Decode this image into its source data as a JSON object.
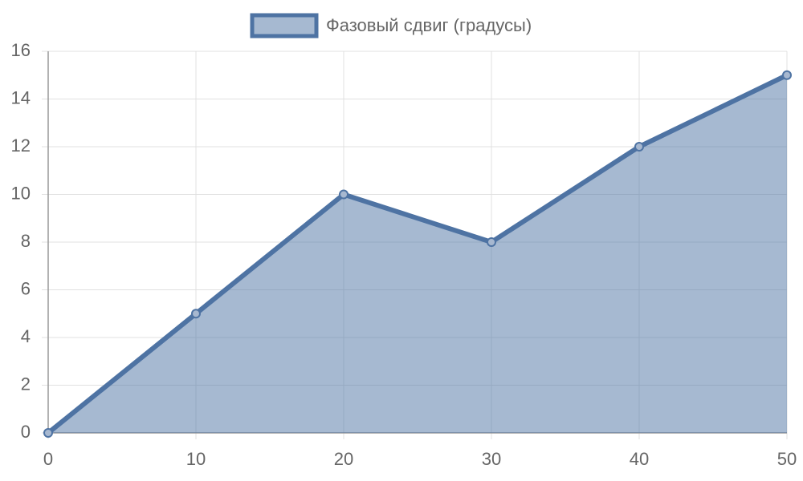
{
  "chart_data": {
    "type": "area",
    "x": [
      0,
      10,
      20,
      30,
      40,
      50
    ],
    "series": [
      {
        "name": "Фазовый сдвиг (градусы)",
        "color": "#4e73a3",
        "values": [
          0,
          5,
          10,
          8,
          12,
          15
        ]
      }
    ],
    "xlim": [
      0,
      50
    ],
    "xticks": [
      0,
      10,
      20,
      30,
      40,
      50
    ],
    "ylim": [
      0,
      16
    ],
    "yticks": [
      0,
      2,
      4,
      6,
      8,
      10,
      12,
      14,
      16
    ],
    "grid": true,
    "legend": "top"
  }
}
